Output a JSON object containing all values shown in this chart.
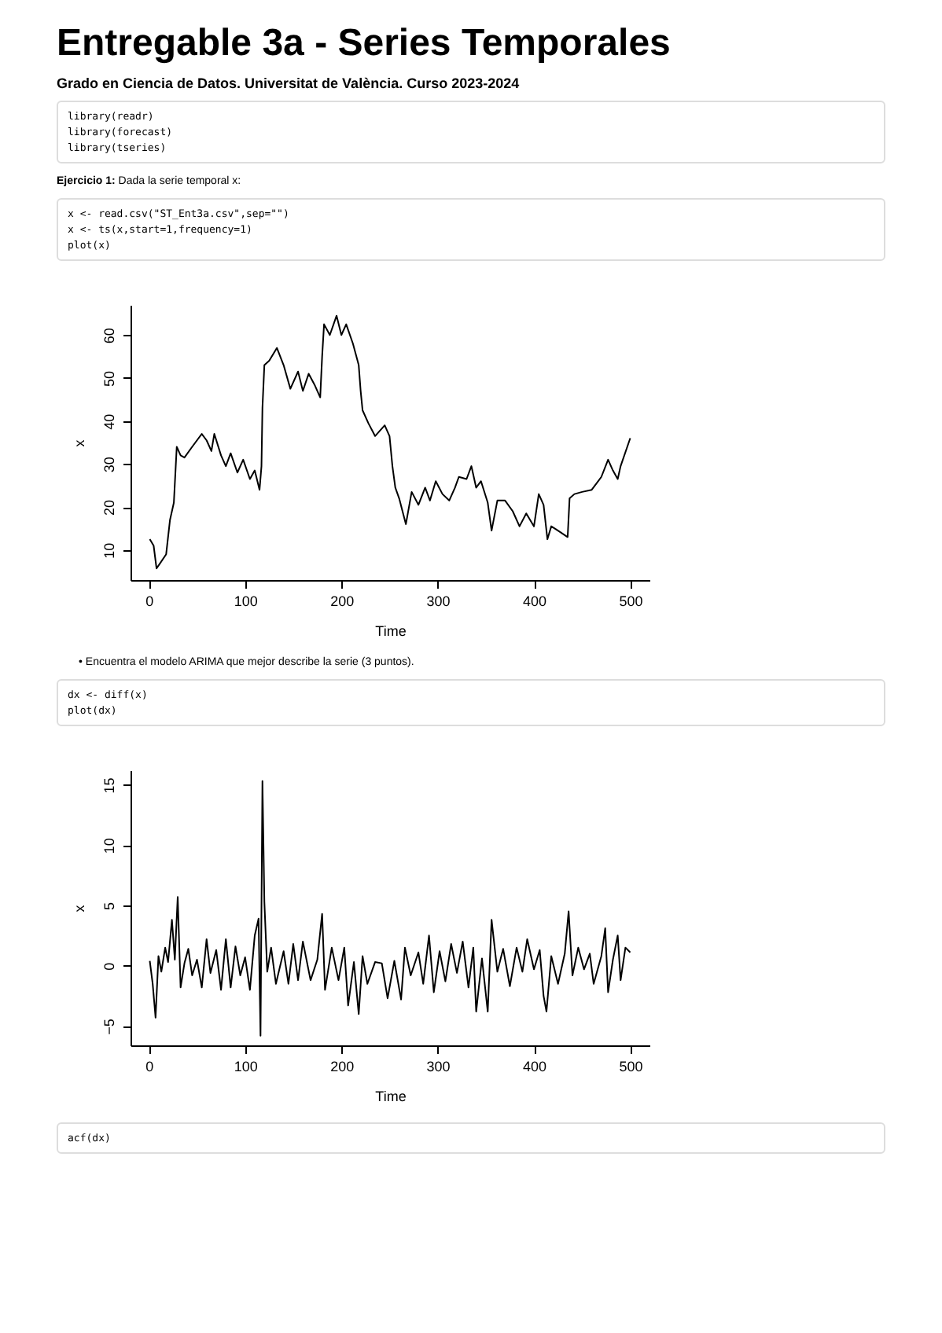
{
  "chart_data": [
    {
      "type": "line",
      "title": "Entregable 3a - Series Temporales",
      "subtitle": "Grado en Ciencia de Datos. Universitat de València. Curso 2023-2024",
      "annotations": [
        "library(readr)\nlibrary(forecast)\nlibrary(tseries)",
        "Ejercicio 1: Dada la serie temporal x:",
        "x <- read.csv(\"ST_Ent3a.csv\",sep=\"\")\nx <- ts(x,start=1,frequency=1)\nplot(x)"
      ],
      "xlabel": "Time",
      "ylabel": "x",
      "color": "#000000",
      "x": [
        1,
        5,
        8,
        12,
        18,
        22,
        26,
        29,
        33,
        37,
        45,
        55,
        60,
        65,
        68,
        75,
        80,
        85,
        92,
        98,
        105,
        110,
        115,
        117,
        118,
        120,
        125,
        133,
        140,
        147,
        155,
        160,
        166,
        172,
        178,
        180,
        182,
        188,
        195,
        200,
        205,
        212,
        218,
        220,
        222,
        228,
        235,
        245,
        250,
        253,
        256,
        260,
        267,
        273,
        280,
        287,
        292,
        298,
        305,
        312,
        318,
        322,
        330,
        335,
        340,
        345,
        352,
        356,
        362,
        370,
        378,
        385,
        392,
        400,
        405,
        410,
        414,
        418,
        425,
        435,
        437,
        442,
        450,
        460,
        470,
        477,
        482,
        487,
        490,
        500
      ],
      "values": [
        12.5,
        11,
        5.7,
        7,
        9,
        17,
        21,
        34,
        32,
        31.5,
        34,
        37,
        35.5,
        33,
        37,
        32,
        29.5,
        32.5,
        28,
        31,
        26.5,
        28.5,
        24,
        29.5,
        43,
        53,
        54,
        57,
        53,
        47.5,
        51.5,
        47,
        51,
        48.5,
        45.5,
        55,
        62.5,
        60,
        64.5,
        60,
        62.5,
        58,
        53,
        47,
        42.5,
        39.5,
        36.5,
        39,
        36.5,
        29.5,
        24.5,
        22,
        16,
        23.5,
        20.5,
        24.5,
        21.5,
        26,
        23,
        21.5,
        24.5,
        27,
        26.5,
        29.5,
        24.5,
        26,
        21,
        14.5,
        21.5,
        21.5,
        19,
        15.5,
        18.5,
        15.5,
        23,
        20.5,
        12.5,
        15.5,
        14.5,
        13,
        22,
        23,
        23.5,
        24,
        27,
        31,
        28.5,
        26.5,
        29.5,
        36
      ],
      "xlim": [
        -19,
        520
      ],
      "ylim": [
        3,
        67
      ],
      "xticks": [
        0,
        100,
        200,
        300,
        400,
        500
      ],
      "yticks": [
        10,
        20,
        30,
        40,
        50,
        60
      ]
    },
    {
      "type": "line",
      "annotations": [
        "• Encuentra el modelo ARIMA que mejor describe la serie (3 puntos).",
        "dx <- diff(x)\nplot(dx)",
        "acf(dx)"
      ],
      "xlabel": "Time",
      "ylabel": "x",
      "color": "#000000",
      "x": [
        1,
        4,
        7,
        10,
        13,
        17,
        20,
        24,
        27,
        30,
        33,
        37,
        41,
        45,
        50,
        55,
        60,
        64,
        70,
        75,
        80,
        85,
        90,
        95,
        100,
        105,
        110,
        114,
        116,
        118,
        120,
        123,
        127,
        132,
        140,
        145,
        150,
        155,
        160,
        168,
        175,
        180,
        183,
        190,
        197,
        203,
        207,
        213,
        218,
        222,
        227,
        235,
        242,
        248,
        255,
        262,
        266,
        272,
        280,
        285,
        291,
        296,
        302,
        308,
        314,
        320,
        326,
        332,
        337,
        340,
        346,
        352,
        356,
        362,
        368,
        375,
        382,
        388,
        393,
        400,
        406,
        410,
        413,
        418,
        425,
        432,
        436,
        440,
        446,
        452,
        458,
        462,
        470,
        474,
        477,
        482,
        487,
        490,
        495,
        500
      ],
      "values": [
        0.4,
        -1.5,
        -4.3,
        0.8,
        -0.5,
        1.5,
        0.3,
        3.8,
        0.5,
        5.7,
        -1.8,
        0.2,
        1.4,
        -0.8,
        0.5,
        -1.8,
        2.2,
        -0.6,
        1.3,
        -2,
        2.2,
        -1.8,
        1.6,
        -0.8,
        0.7,
        -2,
        2.5,
        3.9,
        -5.8,
        15.3,
        5.3,
        -0.5,
        1.5,
        -1.5,
        1.2,
        -1.5,
        1.8,
        -1.2,
        2,
        -1.2,
        0.5,
        4.3,
        -2,
        1.5,
        -1.2,
        1.5,
        -3.3,
        0.3,
        -4,
        0.8,
        -1.5,
        0.3,
        0.2,
        -2.7,
        0.4,
        -2.8,
        1.5,
        -0.8,
        1.1,
        -1.5,
        2.5,
        -2.2,
        1.2,
        -1.3,
        1.8,
        -0.6,
        2,
        -1.8,
        1.5,
        -3.8,
        0.6,
        -3.8,
        3.8,
        -0.5,
        1.4,
        -1.7,
        1.5,
        -0.5,
        2.2,
        -0.3,
        1.3,
        -2.5,
        -3.8,
        0.8,
        -1.5,
        1,
        4.5,
        -0.8,
        1.5,
        -0.3,
        1,
        -1.5,
        0.8,
        3.1,
        -2.2,
        0.5,
        2.5,
        -1.2,
        1.5,
        1.1
      ],
      "xlim": [
        -19,
        520
      ],
      "ylim": [
        -6.6,
        16.2
      ],
      "xticks": [
        0,
        100,
        200,
        300,
        400,
        500
      ],
      "yticks": [
        -5,
        0,
        5,
        10,
        15
      ]
    }
  ]
}
